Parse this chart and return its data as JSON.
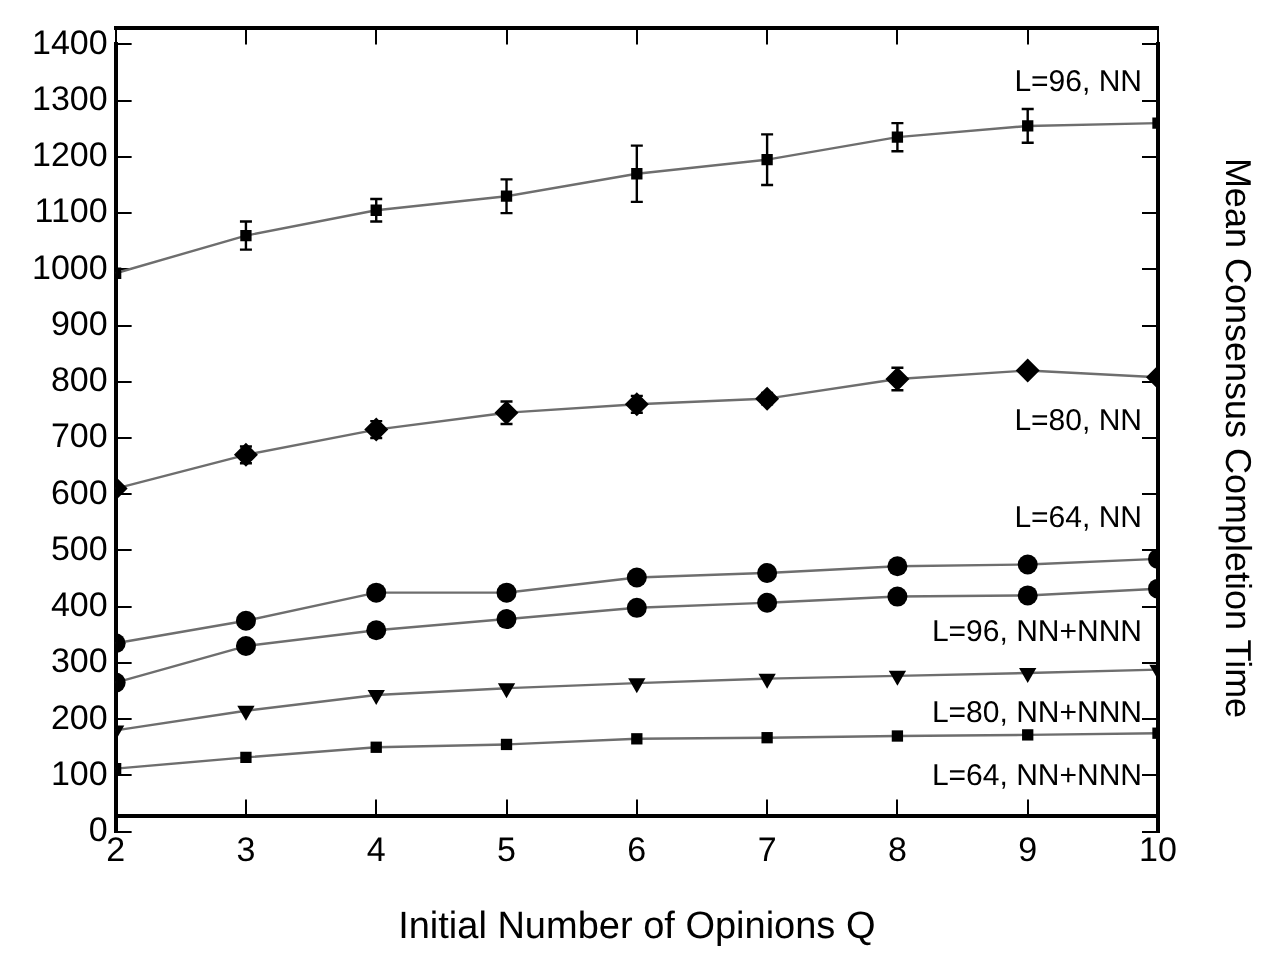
{
  "chart_data": {
    "type": "line",
    "xlabel": "Initial Number of Opinions Q",
    "ylabel": "Mean Consensus Completion Time",
    "x": [
      2,
      3,
      4,
      5,
      6,
      7,
      8,
      9,
      10
    ],
    "xlim": [
      2,
      10
    ],
    "xticks": [
      2,
      3,
      4,
      5,
      6,
      7,
      8,
      9,
      10
    ],
    "ylim": [
      0,
      1400
    ],
    "yticks": [
      0,
      100,
      200,
      300,
      400,
      500,
      600,
      700,
      800,
      900,
      1000,
      1100,
      1200,
      1300,
      1400
    ],
    "grid": false,
    "legend": "right",
    "line_style": "solid",
    "series": [
      {
        "name": "L=96, NN",
        "color": "#000000",
        "marker": "square",
        "values": [
          993,
          1060,
          1105,
          1130,
          1170,
          1195,
          1235,
          1255,
          1260
        ],
        "errors": [
          null,
          25,
          20,
          30,
          50,
          45,
          25,
          30,
          null
        ]
      },
      {
        "name": "L=80, NN",
        "color": "#000000",
        "marker": "diamond",
        "values": [
          610,
          670,
          715,
          745,
          760,
          770,
          805,
          820,
          808
        ],
        "errors": [
          null,
          15,
          15,
          20,
          15,
          10,
          20,
          null,
          null
        ]
      },
      {
        "name": "L=64, NN",
        "color": "#000000",
        "marker": "circle",
        "values": [
          335,
          375,
          425,
          425,
          452,
          460,
          472,
          475,
          485
        ]
      },
      {
        "name": "L=96, NN+NNN",
        "color": "#000000",
        "marker": "circle",
        "values": [
          265,
          330,
          358,
          378,
          398,
          407,
          418,
          420,
          432
        ]
      },
      {
        "name": "L=80, NN+NNN",
        "color": "#000000",
        "marker": "triangle",
        "values": [
          180,
          215,
          243,
          255,
          264,
          272,
          277,
          282,
          288
        ]
      },
      {
        "name": "L=64, NN+NNN",
        "color": "#000000",
        "marker": "square",
        "values": [
          112,
          132,
          150,
          155,
          165,
          167,
          170,
          172,
          175
        ]
      }
    ]
  }
}
